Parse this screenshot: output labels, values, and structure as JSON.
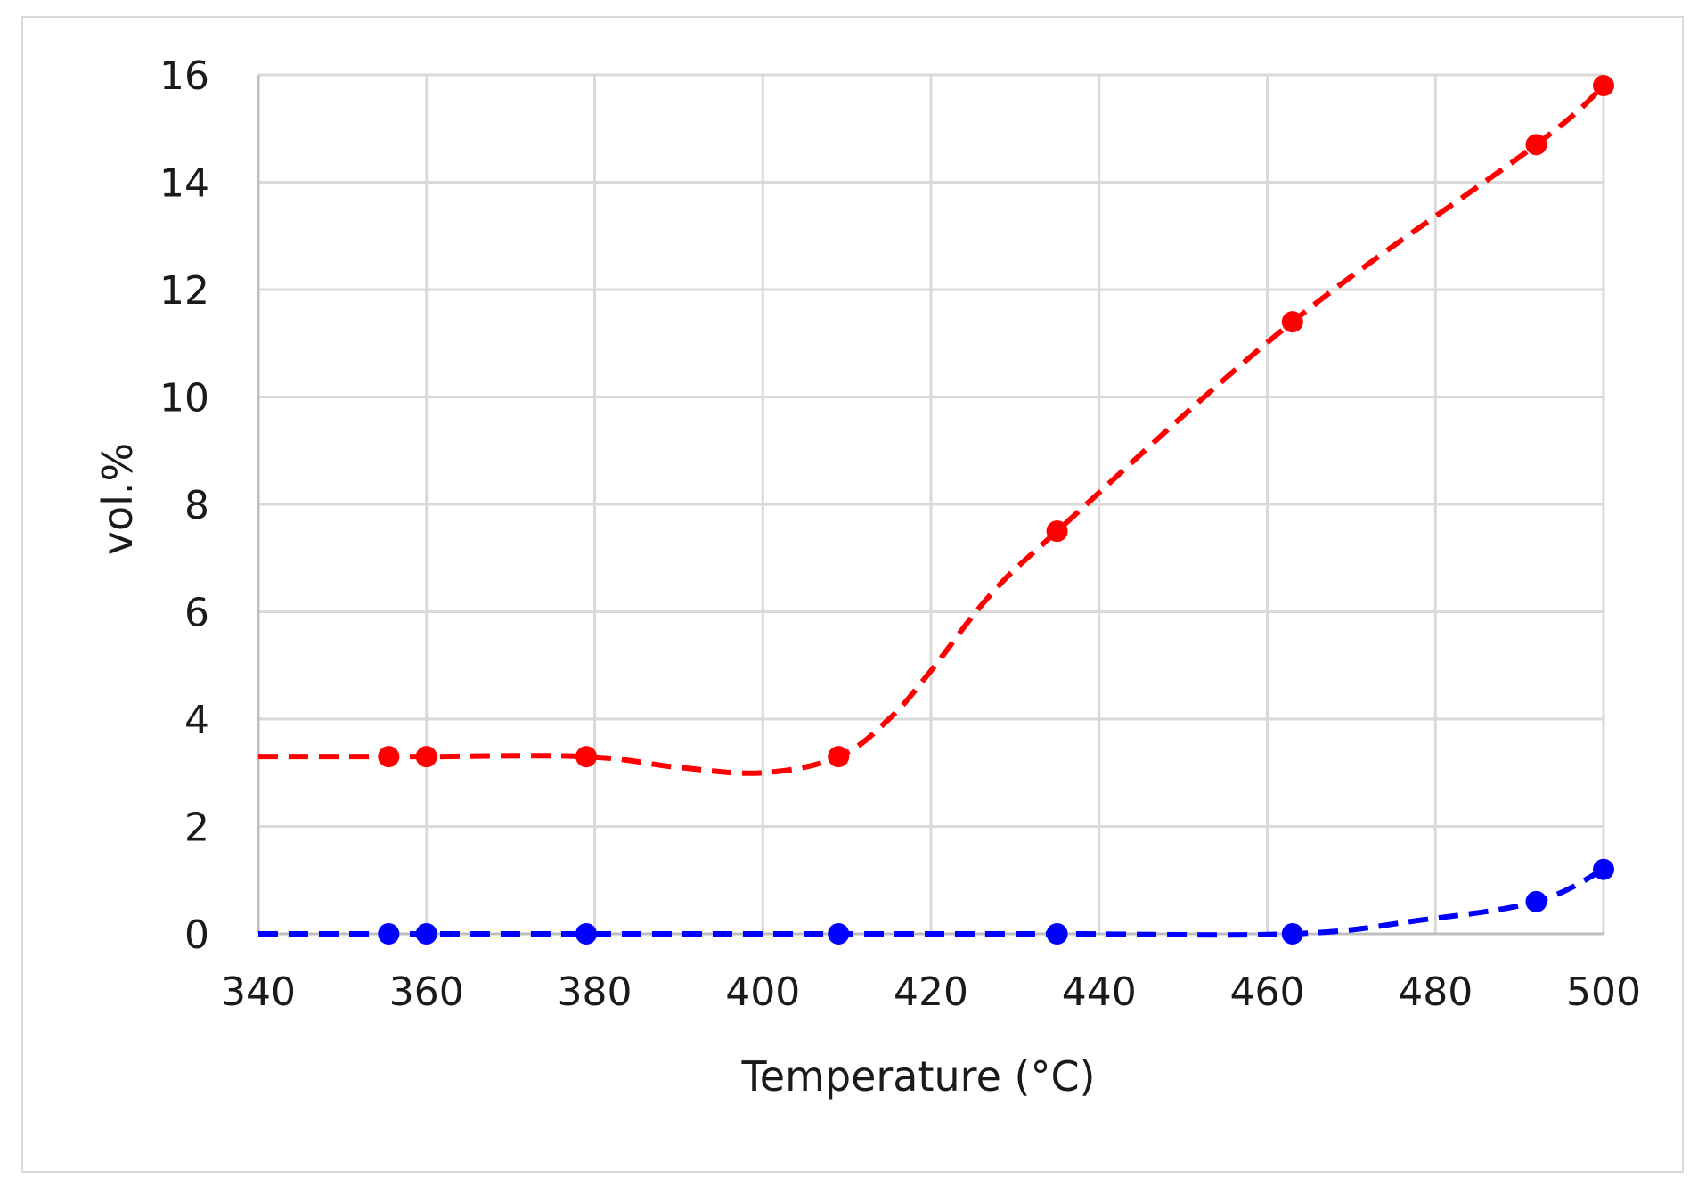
{
  "chart_data": {
    "type": "line",
    "xlabel": "Temperature (°C)",
    "ylabel": "vol.%",
    "xlim": [
      340,
      500
    ],
    "ylim": [
      0,
      16
    ],
    "x_ticks": [
      340,
      360,
      380,
      400,
      420,
      440,
      460,
      480,
      500
    ],
    "y_ticks": [
      0,
      2,
      4,
      6,
      8,
      10,
      12,
      14,
      16
    ],
    "grid": true,
    "legend": "none",
    "series": [
      {
        "color": "#ff0000",
        "line_style": "dashed",
        "points": [
          {
            "x": 355.5,
            "y": 3.3
          },
          {
            "x": 360,
            "y": 3.3
          },
          {
            "x": 379,
            "y": 3.3
          },
          {
            "x": 409,
            "y": 3.3
          },
          {
            "x": 435,
            "y": 7.5
          },
          {
            "x": 463,
            "y": 11.4
          },
          {
            "x": 492,
            "y": 14.7
          },
          {
            "x": 500,
            "y": 15.8
          }
        ],
        "curve": [
          {
            "x": 340,
            "y": 3.3
          },
          {
            "x": 355.5,
            "y": 3.3
          },
          {
            "x": 360,
            "y": 3.3
          },
          {
            "x": 379,
            "y": 3.3
          },
          {
            "x": 390,
            "y": 3.1
          },
          {
            "x": 400,
            "y": 3.0
          },
          {
            "x": 409,
            "y": 3.3
          },
          {
            "x": 415,
            "y": 4.0
          },
          {
            "x": 420,
            "y": 4.9
          },
          {
            "x": 427,
            "y": 6.3
          },
          {
            "x": 435,
            "y": 7.5
          },
          {
            "x": 463,
            "y": 11.4
          },
          {
            "x": 492,
            "y": 14.7
          },
          {
            "x": 500,
            "y": 15.8
          }
        ]
      },
      {
        "color": "#0000ff",
        "line_style": "dashed",
        "points": [
          {
            "x": 355.5,
            "y": 0
          },
          {
            "x": 360,
            "y": 0
          },
          {
            "x": 379,
            "y": 0
          },
          {
            "x": 409,
            "y": 0
          },
          {
            "x": 435,
            "y": 0
          },
          {
            "x": 463,
            "y": 0
          },
          {
            "x": 492,
            "y": 0.6
          },
          {
            "x": 500,
            "y": 1.2
          }
        ],
        "curve": [
          {
            "x": 340,
            "y": 0
          },
          {
            "x": 355.5,
            "y": 0
          },
          {
            "x": 360,
            "y": 0
          },
          {
            "x": 379,
            "y": 0
          },
          {
            "x": 409,
            "y": 0
          },
          {
            "x": 435,
            "y": 0
          },
          {
            "x": 463,
            "y": 0
          },
          {
            "x": 478,
            "y": 0.25
          },
          {
            "x": 492,
            "y": 0.6
          },
          {
            "x": 500,
            "y": 1.2
          }
        ]
      }
    ]
  }
}
